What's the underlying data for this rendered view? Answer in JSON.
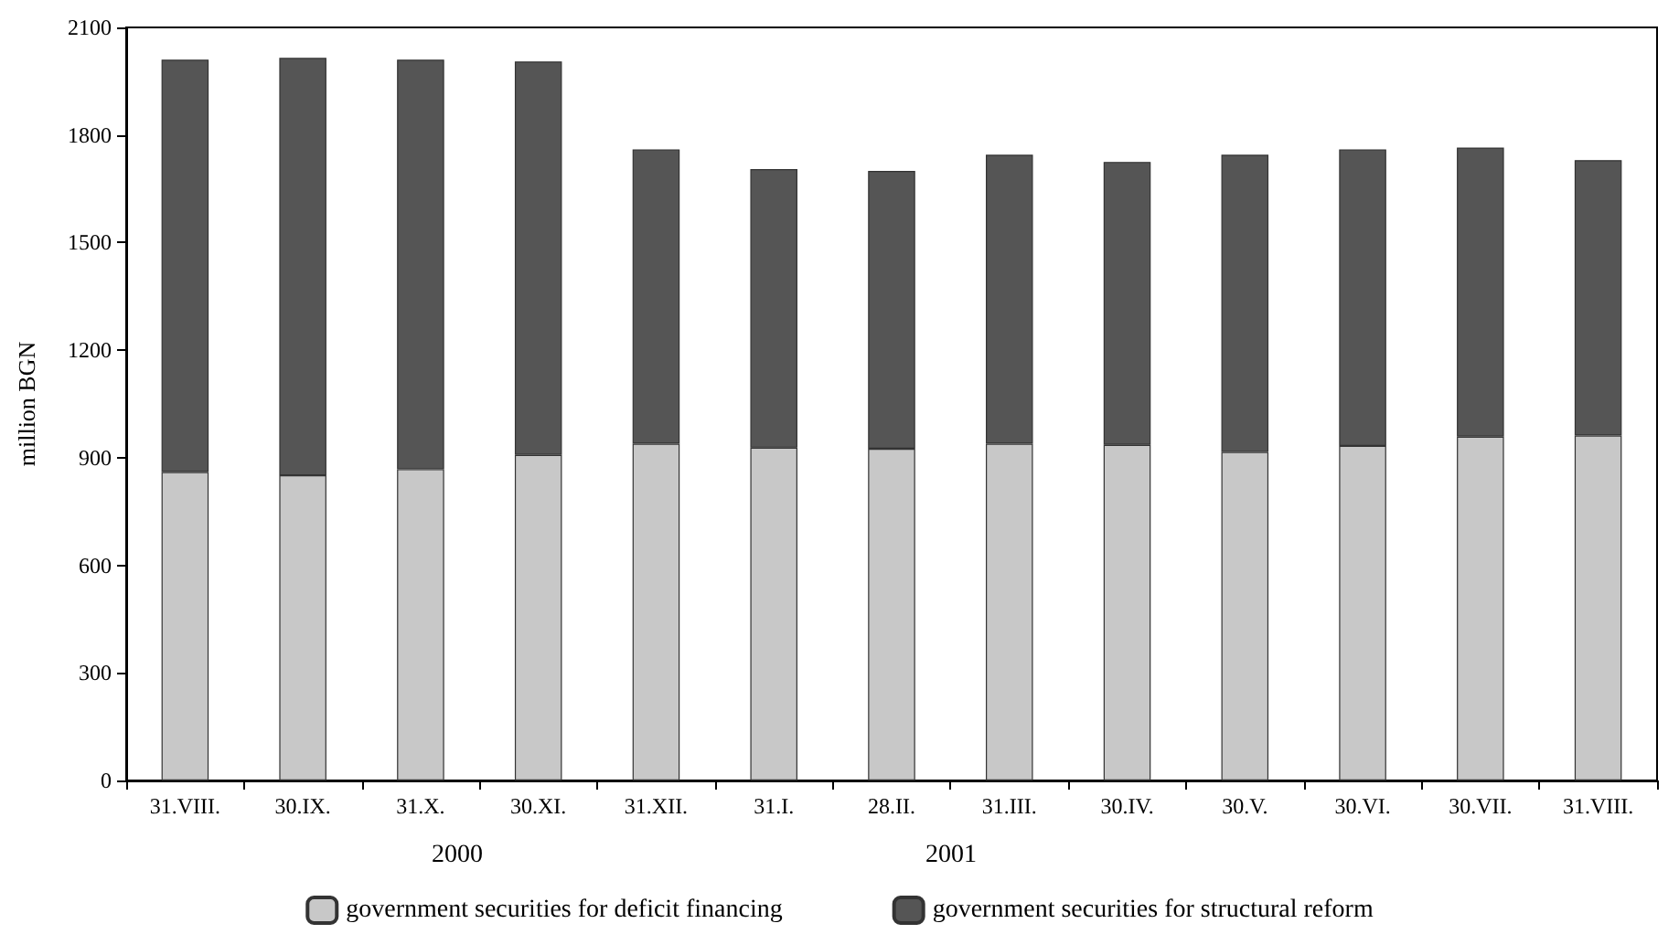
{
  "chart_data": {
    "type": "bar",
    "stacked": true,
    "ylabel": "million BGN",
    "categories": [
      "31.VIII.",
      "30.IX.",
      "31.X.",
      "30.XI.",
      "31.XII.",
      "31.I.",
      "28.II.",
      "31.III.",
      "30.IV.",
      "30.V.",
      "30.VI.",
      "30.VII.",
      "31.VIII."
    ],
    "series": [
      {
        "name": "government securities for deficit financing",
        "color": "#c8c8c8",
        "values": [
          860,
          851,
          868,
          908,
          939,
          928,
          925,
          939,
          936,
          916,
          933,
          959,
          962
        ]
      },
      {
        "name": "government securities for structural reform",
        "color": "#555555",
        "values": [
          1150,
          1164,
          1142,
          1097,
          821,
          777,
          775,
          806,
          789,
          829,
          827,
          806,
          768
        ]
      }
    ],
    "ylim": [
      0,
      2100
    ],
    "yticks": [
      0,
      300,
      600,
      900,
      1200,
      1500,
      1800,
      2100
    ],
    "grid": false,
    "legend": "bottom",
    "annotations": [
      "2000",
      "2001"
    ]
  }
}
